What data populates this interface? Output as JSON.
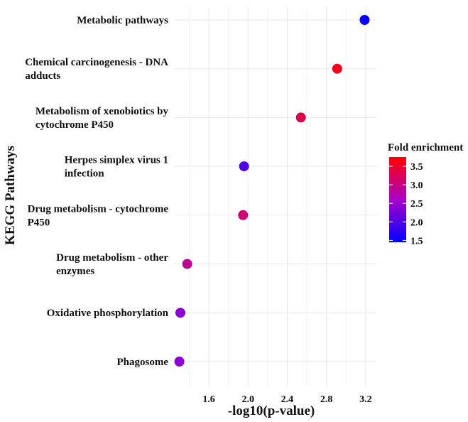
{
  "chart_data": {
    "type": "scatter",
    "title": "",
    "xlabel": "-log10(p-value)",
    "ylabel": "KEGG Pathways",
    "xlim": [
      1.245,
      3.31
    ],
    "xticks": [
      "1.6",
      "2.0",
      "2.4",
      "2.8",
      "3.2"
    ],
    "grid": true,
    "categories": [
      [
        "Metabolic pathways"
      ],
      [
        "Chemical carcinogenesis - DNA",
        "adducts"
      ],
      [
        "Metabolism of xenobiotics by",
        "cytochrome P450"
      ],
      [
        "Herpes simplex virus 1",
        "infection"
      ],
      [
        "Drug metabolism - cytochrome",
        "P450"
      ],
      [
        "Drug metabolism - other",
        "enzymes"
      ],
      [
        "Oxidative phosphorylation"
      ],
      [
        "Phagosome"
      ]
    ],
    "x": [
      3.19,
      2.91,
      2.54,
      1.96,
      1.95,
      1.38,
      1.31,
      1.3
    ],
    "fold_enrichment": [
      1.5,
      3.6,
      3.3,
      2.0,
      3.1,
      2.9,
      2.4,
      2.4
    ],
    "legend": {
      "title": "Fold enrichment",
      "ticks": [
        "1.5",
        "2.0",
        "2.5",
        "3.0",
        "3.5"
      ],
      "range": [
        1.45,
        3.75
      ],
      "low_color": "#0000ff",
      "high_color": "#ff0000",
      "placement": "right"
    }
  }
}
